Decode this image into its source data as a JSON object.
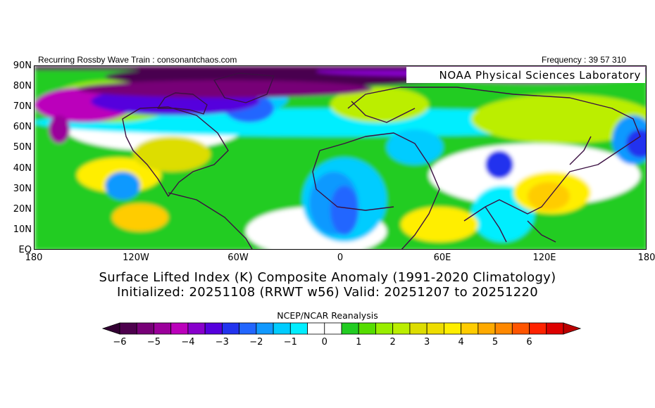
{
  "header": {
    "left_text": "Recurring Rossby Wave Train : consonantchaos.com",
    "right_text": "Frequency : 39 57 310"
  },
  "map": {
    "lab_label": "NOAA Physical Sciences Laboratory",
    "y_axis_labels": [
      "90N",
      "80N",
      "70N",
      "60N",
      "50N",
      "40N",
      "30N",
      "20N",
      "10N",
      "EQ"
    ],
    "x_axis_labels": [
      "180",
      "120W",
      "60W",
      "0",
      "60E",
      "120E",
      "180"
    ],
    "colors": {
      "deep_negative": "#4a004f",
      "neutral": "#ffffff",
      "positive_mid": "#c6e02c",
      "coastline": "#3b1042"
    }
  },
  "title": {
    "line1": "Surface Lifted Index (K) Composite Anomaly (1991-2020 Climatology)",
    "line2": "Initialized: 20251108 (RRWT w56) Valid: 20251207 to 20251220"
  },
  "colorbar": {
    "label": "NCEP/NCAR Reanalysis",
    "tick_labels": [
      "-6",
      "-5",
      "-4",
      "-3",
      "-2",
      "-1",
      "0",
      "1",
      "2",
      "3",
      "4",
      "5",
      "6"
    ],
    "colors": [
      "#4d004d",
      "#770077",
      "#9b009b",
      "#bb00bb",
      "#8800cc",
      "#5500dd",
      "#2233ee",
      "#2266ff",
      "#1199ff",
      "#00ccff",
      "#00eeff",
      "#ffffff",
      "#ffffff",
      "#22cc22",
      "#55dd00",
      "#99ee00",
      "#bbee00",
      "#dddd00",
      "#eedd00",
      "#ffee00",
      "#ffcc00",
      "#ffaa00",
      "#ff8800",
      "#ff5500",
      "#ff2200",
      "#dd0000"
    ],
    "under_color": "#330033",
    "over_color": "#bb0000"
  }
}
